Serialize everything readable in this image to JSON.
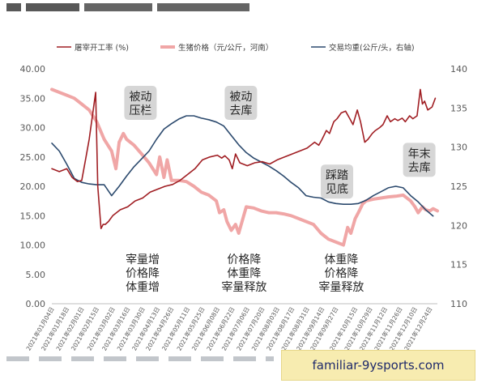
{
  "colors": {
    "rate": "#a01e23",
    "price": "#f0a6a6",
    "weight": "#2c4a6e",
    "annotation_bg": "#d6d6d6",
    "watermark_bg": "#f7ecb0"
  },
  "legend": [
    {
      "key": "rate",
      "label": "屠宰开工率 (%)"
    },
    {
      "key": "price",
      "label": "生猪价格（元/公斤，河南）"
    },
    {
      "key": "weight",
      "label": "交易均重(公斤/头，右轴)"
    }
  ],
  "watermark": "familiar-9ysports.com",
  "annotations": [
    {
      "text": [
        "被动",
        "压栏"
      ],
      "style": "box",
      "x": "2021-03-28",
      "y": 34.2
    },
    {
      "text": [
        "被动",
        "去库"
      ],
      "style": "box",
      "x": "2021-06-30",
      "y": 34.2
    },
    {
      "text": [
        "踩踏",
        "见底"
      ],
      "style": "box",
      "x": "2021-09-28",
      "y": 20.8
    },
    {
      "text": [
        "年末",
        "去库"
      ],
      "style": "box",
      "x": "2021-12-14",
      "y": 24.5
    },
    {
      "text": [
        "宰量增",
        "价格降",
        "体重增"
      ],
      "style": "plain",
      "x": "2021-03-30",
      "y": 5.3
    },
    {
      "text": [
        "价格降",
        "体重降",
        "宰量释放"
      ],
      "style": "plain",
      "x": "2021-07-03",
      "y": 5.3
    },
    {
      "text": [
        "体重降",
        "价格降",
        "宰量释放"
      ],
      "style": "plain",
      "x": "2021-10-02",
      "y": 5.3
    }
  ],
  "chart_data": {
    "type": "line",
    "title": "",
    "xlabel": "",
    "ylabel": "",
    "y_left": {
      "min": 0,
      "max": 40,
      "ticks": [
        "0.00",
        "5.00",
        "10.00",
        "15.00",
        "20.00",
        "25.00",
        "30.00",
        "35.00",
        "40.00"
      ]
    },
    "y_right": {
      "min": 110,
      "max": 140,
      "ticks": [
        "110",
        "115",
        "120",
        "125",
        "130",
        "135",
        "140"
      ]
    },
    "x_range": [
      "2021-01-04",
      "2021-12-31"
    ],
    "x_ticks": [
      "2021年01月04日",
      "2021年01月18日",
      "2021年02月01日",
      "2021年02月15日",
      "2021年03月02日",
      "2021年03月16日",
      "2021年03月30日",
      "2021年04月13日",
      "2021年04月26日",
      "2021年05月11日",
      "2021年05月25日",
      "2021年06月08日",
      "2021年06月22日",
      "2021年07月06日",
      "2021年07月20日",
      "2021年08月03日",
      "2021年08月17日",
      "2021年08月31日",
      "2021年09月14日",
      "2021年09月27日",
      "2021年10月15日",
      "2021年10月29日",
      "2021年11月12日",
      "2021年11月26日",
      "2021年12月10日",
      "2021年12月24日"
    ],
    "x_tick_dates": [
      "2021-01-04",
      "2021-01-18",
      "2021-02-01",
      "2021-02-15",
      "2021-03-02",
      "2021-03-16",
      "2021-03-30",
      "2021-04-13",
      "2021-04-26",
      "2021-05-11",
      "2021-05-25",
      "2021-06-08",
      "2021-06-22",
      "2021-07-06",
      "2021-07-20",
      "2021-08-03",
      "2021-08-17",
      "2021-08-31",
      "2021-09-14",
      "2021-09-27",
      "2021-10-15",
      "2021-10-29",
      "2021-11-12",
      "2021-11-26",
      "2021-12-10",
      "2021-12-24"
    ],
    "series": [
      {
        "name": "屠宰开工率 (%)",
        "axis": "left",
        "x": [
          "2021-01-04",
          "2021-01-11",
          "2021-01-18",
          "2021-01-23",
          "2021-01-28",
          "2021-02-01",
          "2021-02-05",
          "2021-02-08",
          "2021-02-11",
          "2021-02-14",
          "2021-02-16",
          "2021-02-19",
          "2021-02-21",
          "2021-02-23",
          "2021-02-26",
          "2021-03-02",
          "2021-03-09",
          "2021-03-16",
          "2021-03-23",
          "2021-03-30",
          "2021-04-06",
          "2021-04-13",
          "2021-04-20",
          "2021-04-27",
          "2021-05-04",
          "2021-05-11",
          "2021-05-18",
          "2021-05-25",
          "2021-06-01",
          "2021-06-08",
          "2021-06-12",
          "2021-06-15",
          "2021-06-19",
          "2021-06-22",
          "2021-06-25",
          "2021-06-29",
          "2021-07-06",
          "2021-07-13",
          "2021-07-20",
          "2021-07-27",
          "2021-08-03",
          "2021-08-10",
          "2021-08-17",
          "2021-08-24",
          "2021-08-31",
          "2021-09-07",
          "2021-09-11",
          "2021-09-14",
          "2021-09-18",
          "2021-09-21",
          "2021-09-25",
          "2021-09-28",
          "2021-10-02",
          "2021-10-06",
          "2021-10-10",
          "2021-10-13",
          "2021-10-17",
          "2021-10-20",
          "2021-10-24",
          "2021-10-27",
          "2021-10-31",
          "2021-11-03",
          "2021-11-07",
          "2021-11-10",
          "2021-11-14",
          "2021-11-17",
          "2021-11-21",
          "2021-11-24",
          "2021-11-28",
          "2021-12-01",
          "2021-12-05",
          "2021-12-08",
          "2021-12-12",
          "2021-12-15",
          "2021-12-17",
          "2021-12-19",
          "2021-12-22",
          "2021-12-26",
          "2021-12-29"
        ],
        "values": [
          23.0,
          22.5,
          23.0,
          21.5,
          20.8,
          21.0,
          25.0,
          28.0,
          32.0,
          36.0,
          20.0,
          12.8,
          13.5,
          13.5,
          14.0,
          15.0,
          16.0,
          16.5,
          17.5,
          18.0,
          19.0,
          19.5,
          20.0,
          20.3,
          21.0,
          22.0,
          23.0,
          24.5,
          25.0,
          25.3,
          24.8,
          25.2,
          24.5,
          23.0,
          25.5,
          24.0,
          23.5,
          24.0,
          24.2,
          23.8,
          24.5,
          25.0,
          25.5,
          26.0,
          26.5,
          27.5,
          27.0,
          28.0,
          29.5,
          29.0,
          31.0,
          31.5,
          32.5,
          32.8,
          31.5,
          30.5,
          33.0,
          31.0,
          27.5,
          28.0,
          29.0,
          29.5,
          30.0,
          30.5,
          32.0,
          31.0,
          31.5,
          31.2,
          31.6,
          31.0,
          32.0,
          31.5,
          32.0,
          36.5,
          34.0,
          34.5,
          33.0,
          33.5,
          35.0
        ]
      },
      {
        "name": "生猪价格（元/公斤，河南）",
        "axis": "left",
        "x": [
          "2021-01-04",
          "2021-01-11",
          "2021-01-18",
          "2021-01-25",
          "2021-02-01",
          "2021-02-08",
          "2021-02-15",
          "2021-02-22",
          "2021-03-01",
          "2021-03-05",
          "2021-03-08",
          "2021-03-12",
          "2021-03-15",
          "2021-03-22",
          "2021-03-29",
          "2021-04-05",
          "2021-04-12",
          "2021-04-15",
          "2021-04-19",
          "2021-04-22",
          "2021-04-26",
          "2021-05-03",
          "2021-05-10",
          "2021-05-17",
          "2021-05-24",
          "2021-05-31",
          "2021-06-07",
          "2021-06-10",
          "2021-06-14",
          "2021-06-17",
          "2021-06-21",
          "2021-06-25",
          "2021-06-28",
          "2021-07-05",
          "2021-07-12",
          "2021-07-19",
          "2021-07-26",
          "2021-08-02",
          "2021-08-09",
          "2021-08-16",
          "2021-08-23",
          "2021-08-30",
          "2021-09-06",
          "2021-09-13",
          "2021-09-20",
          "2021-09-27",
          "2021-10-04",
          "2021-10-08",
          "2021-10-11",
          "2021-10-15",
          "2021-10-18",
          "2021-10-22",
          "2021-10-25",
          "2021-11-01",
          "2021-11-08",
          "2021-11-15",
          "2021-11-22",
          "2021-11-29",
          "2021-12-06",
          "2021-12-10",
          "2021-12-13",
          "2021-12-17",
          "2021-12-20",
          "2021-12-24",
          "2021-12-27",
          "2021-12-31"
        ],
        "values": [
          36.5,
          36.0,
          35.5,
          35.0,
          34.0,
          33.0,
          31.0,
          28.0,
          26.0,
          23.0,
          27.5,
          29.0,
          28.0,
          27.0,
          25.5,
          24.0,
          22.0,
          25.0,
          21.5,
          24.5,
          21.0,
          21.0,
          20.8,
          20.0,
          19.0,
          18.5,
          17.5,
          15.5,
          16.0,
          14.0,
          12.5,
          13.5,
          12.0,
          16.5,
          16.3,
          15.8,
          15.5,
          15.5,
          15.3,
          15.0,
          14.5,
          14.0,
          13.5,
          12.0,
          11.0,
          10.5,
          10.0,
          13.0,
          12.0,
          14.5,
          15.5,
          17.0,
          17.5,
          17.8,
          18.0,
          18.2,
          18.3,
          18.5,
          17.5,
          16.5,
          15.5,
          16.5,
          16.0,
          15.8,
          16.2,
          15.8
        ]
      },
      {
        "name": "交易均重(公斤/头，右轴)",
        "axis": "right",
        "x": [
          "2021-01-04",
          "2021-01-11",
          "2021-01-18",
          "2021-01-25",
          "2021-02-01",
          "2021-02-08",
          "2021-02-15",
          "2021-02-22",
          "2021-03-01",
          "2021-03-08",
          "2021-03-15",
          "2021-03-22",
          "2021-03-29",
          "2021-04-05",
          "2021-04-12",
          "2021-04-19",
          "2021-04-26",
          "2021-05-03",
          "2021-05-10",
          "2021-05-17",
          "2021-05-24",
          "2021-05-31",
          "2021-06-07",
          "2021-06-14",
          "2021-06-21",
          "2021-06-28",
          "2021-07-05",
          "2021-07-12",
          "2021-07-19",
          "2021-07-26",
          "2021-08-02",
          "2021-08-09",
          "2021-08-16",
          "2021-08-23",
          "2021-08-30",
          "2021-09-06",
          "2021-09-13",
          "2021-09-20",
          "2021-09-27",
          "2021-10-04",
          "2021-10-11",
          "2021-10-18",
          "2021-10-25",
          "2021-11-01",
          "2021-11-08",
          "2021-11-15",
          "2021-11-22",
          "2021-11-29",
          "2021-12-06",
          "2021-12-13",
          "2021-12-20",
          "2021-12-27"
        ],
        "values": [
          130.5,
          129.5,
          127.8,
          126.0,
          125.5,
          125.3,
          125.2,
          125.2,
          123.8,
          125.0,
          126.3,
          127.5,
          128.5,
          129.5,
          131.0,
          132.3,
          133.0,
          133.6,
          134.0,
          134.0,
          133.7,
          133.5,
          133.2,
          132.7,
          131.5,
          130.3,
          129.3,
          128.6,
          128.1,
          127.6,
          127.0,
          126.3,
          125.5,
          124.8,
          123.8,
          123.6,
          123.5,
          123.0,
          122.8,
          122.7,
          122.7,
          122.8,
          123.2,
          123.8,
          124.3,
          124.8,
          125.0,
          124.8,
          123.8,
          123.0,
          122.0,
          121.2
        ]
      }
    ],
    "grid": false,
    "legend_position": "top-left"
  }
}
